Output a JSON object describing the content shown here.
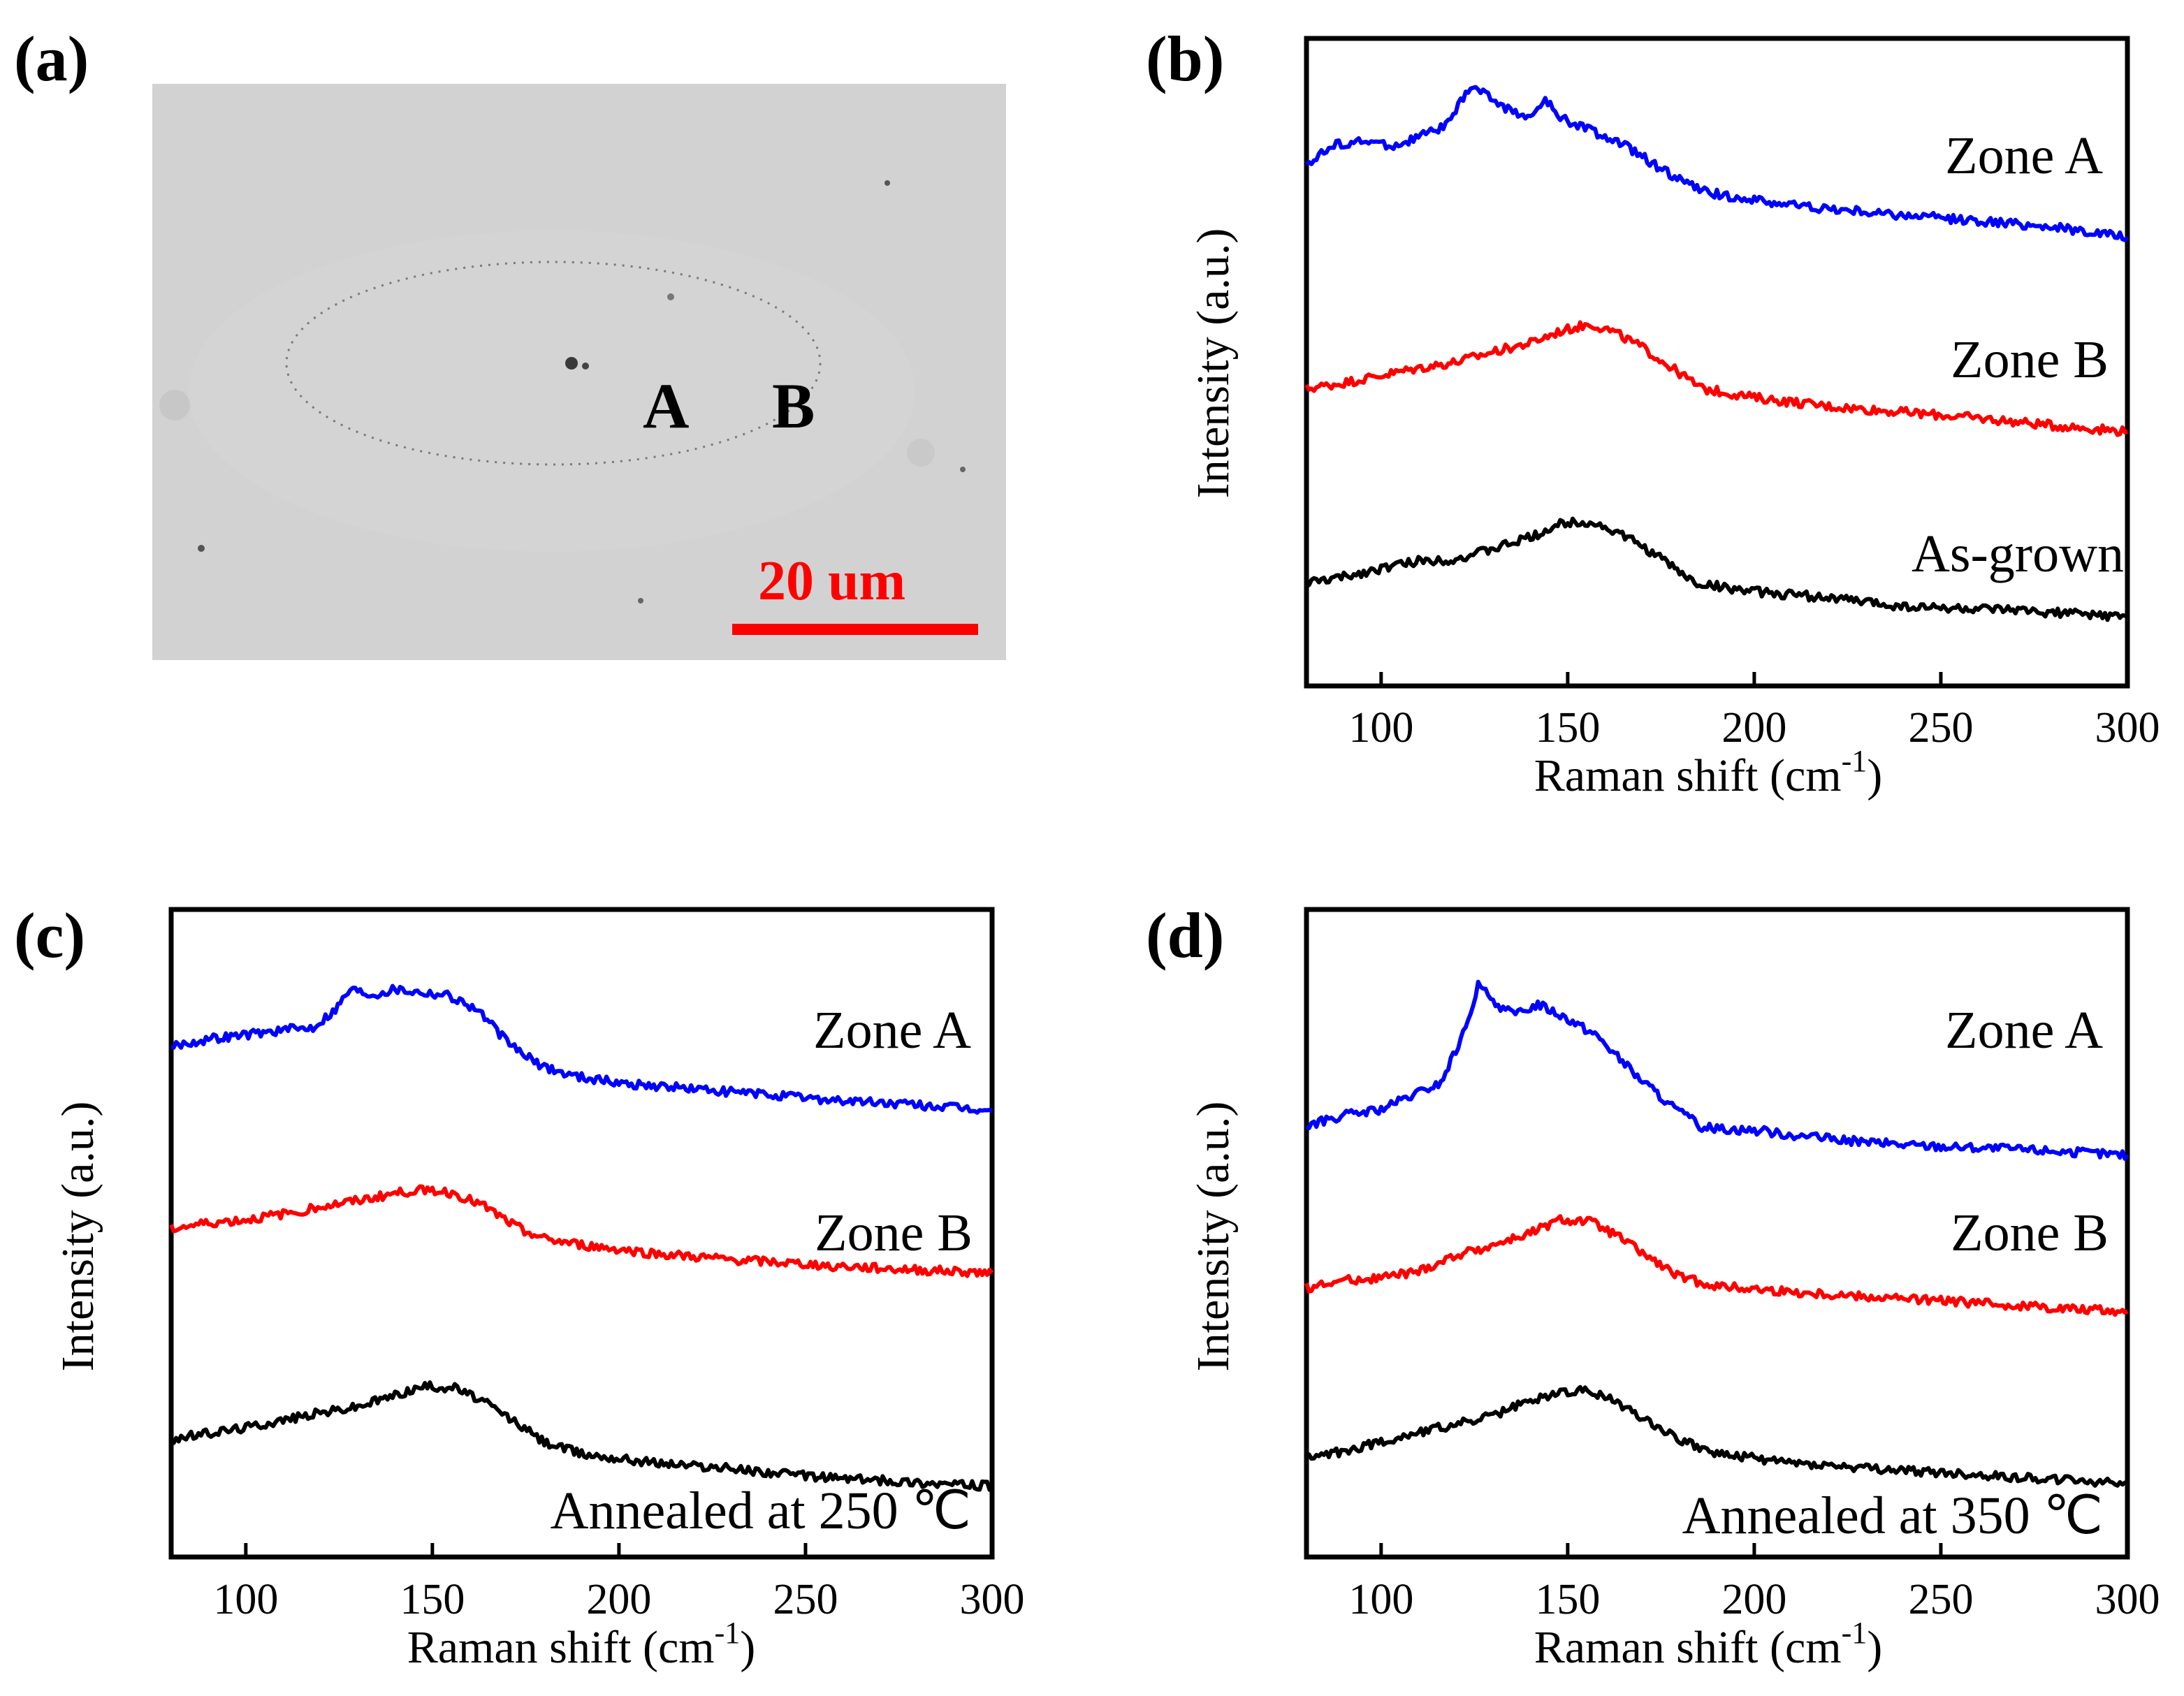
{
  "figure": {
    "panel_letters": {
      "a": "(a)",
      "b": "(b)",
      "c": "(c)",
      "d": "(d)"
    },
    "micrograph": {
      "label_a": "A",
      "label_b": "B",
      "scale_bar_text": "20 um",
      "scale_bar_color": "#ff0000",
      "background_color": "#d2d2d2"
    }
  },
  "chart_data": [
    {
      "id": "b",
      "type": "line",
      "xlabel": "Raman shift (cm",
      "xlabel_sup": "-1",
      "xlabel_end": ")",
      "ylabel": "Intensity (a.u.)",
      "xlim": [
        80,
        300
      ],
      "ylim": [
        0,
        4.4
      ],
      "xticks": [
        100,
        150,
        200,
        250,
        300
      ],
      "tick_labels": [
        "100",
        "150",
        "200",
        "250",
        "300"
      ],
      "grid": false,
      "series": [
        {
          "name": "Zone A",
          "color": "#0000ff",
          "points": [
            [
              80,
              3.55
            ],
            [
              88,
              3.68
            ],
            [
              96,
              3.7
            ],
            [
              104,
              3.67
            ],
            [
              112,
              3.75
            ],
            [
              118,
              3.82
            ],
            [
              124,
              4.08
            ],
            [
              128,
              4.02
            ],
            [
              134,
              3.92
            ],
            [
              140,
              3.86
            ],
            [
              144,
              3.98
            ],
            [
              148,
              3.86
            ],
            [
              156,
              3.78
            ],
            [
              166,
              3.66
            ],
            [
              176,
              3.5
            ],
            [
              186,
              3.36
            ],
            [
              200,
              3.3
            ],
            [
              220,
              3.24
            ],
            [
              240,
              3.2
            ],
            [
              260,
              3.16
            ],
            [
              280,
              3.12
            ],
            [
              300,
              3.05
            ]
          ]
        },
        {
          "name": "Zone B",
          "color": "#ff0000",
          "points": [
            [
              80,
              2.02
            ],
            [
              90,
              2.06
            ],
            [
              100,
              2.11
            ],
            [
              110,
              2.16
            ],
            [
              120,
              2.2
            ],
            [
              130,
              2.27
            ],
            [
              140,
              2.33
            ],
            [
              148,
              2.41
            ],
            [
              156,
              2.46
            ],
            [
              162,
              2.41
            ],
            [
              170,
              2.3
            ],
            [
              178,
              2.16
            ],
            [
              186,
              2.02
            ],
            [
              200,
              1.96
            ],
            [
              220,
              1.9
            ],
            [
              240,
              1.86
            ],
            [
              260,
              1.82
            ],
            [
              280,
              1.77
            ],
            [
              300,
              1.73
            ]
          ]
        },
        {
          "name": "As-grown",
          "color": "#000000",
          "points": [
            [
              80,
              0.7
            ],
            [
              90,
              0.74
            ],
            [
              100,
              0.8
            ],
            [
              110,
              0.85
            ],
            [
              120,
              0.86
            ],
            [
              130,
              0.93
            ],
            [
              140,
              1.01
            ],
            [
              148,
              1.1
            ],
            [
              154,
              1.12
            ],
            [
              160,
              1.08
            ],
            [
              168,
              0.98
            ],
            [
              176,
              0.85
            ],
            [
              184,
              0.7
            ],
            [
              200,
              0.64
            ],
            [
              220,
              0.6
            ],
            [
              240,
              0.54
            ],
            [
              260,
              0.52
            ],
            [
              280,
              0.5
            ],
            [
              300,
              0.47
            ]
          ]
        }
      ]
    },
    {
      "id": "c",
      "type": "line",
      "xlabel": "Raman shift (cm",
      "xlabel_sup": "-1",
      "xlabel_end": ")",
      "ylabel": "Intensity (a.u.)",
      "xlim": [
        80,
        300
      ],
      "ylim": [
        0,
        4.4
      ],
      "xticks": [
        100,
        150,
        200,
        250,
        300
      ],
      "tick_labels": [
        "100",
        "150",
        "200",
        "250",
        "300"
      ],
      "grid": false,
      "annotation": "Annealed at 250  ℃",
      "series": [
        {
          "name": "Zone A",
          "color": "#0000ff",
          "points": [
            [
              80,
              3.47
            ],
            [
              90,
              3.52
            ],
            [
              100,
              3.55
            ],
            [
              110,
              3.58
            ],
            [
              118,
              3.6
            ],
            [
              124,
              3.72
            ],
            [
              128,
              3.86
            ],
            [
              134,
              3.82
            ],
            [
              140,
              3.86
            ],
            [
              146,
              3.84
            ],
            [
              154,
              3.82
            ],
            [
              162,
              3.72
            ],
            [
              170,
              3.5
            ],
            [
              178,
              3.35
            ],
            [
              186,
              3.28
            ],
            [
              200,
              3.22
            ],
            [
              220,
              3.18
            ],
            [
              240,
              3.14
            ],
            [
              260,
              3.1
            ],
            [
              280,
              3.07
            ],
            [
              300,
              3.03
            ]
          ]
        },
        {
          "name": "Zone B",
          "color": "#ff0000",
          "points": [
            [
              80,
              2.23
            ],
            [
              90,
              2.27
            ],
            [
              100,
              2.29
            ],
            [
              110,
              2.33
            ],
            [
              120,
              2.38
            ],
            [
              130,
              2.42
            ],
            [
              140,
              2.47
            ],
            [
              148,
              2.5
            ],
            [
              156,
              2.47
            ],
            [
              164,
              2.38
            ],
            [
              172,
              2.25
            ],
            [
              180,
              2.16
            ],
            [
              190,
              2.12
            ],
            [
              210,
              2.06
            ],
            [
              230,
              2.02
            ],
            [
              250,
              1.99
            ],
            [
              270,
              1.96
            ],
            [
              300,
              1.93
            ]
          ]
        },
        {
          "name": "Annealed at 250",
          "color": "#000000",
          "points": [
            [
              80,
              0.8
            ],
            [
              90,
              0.84
            ],
            [
              100,
              0.88
            ],
            [
              110,
              0.93
            ],
            [
              120,
              0.98
            ],
            [
              130,
              1.02
            ],
            [
              140,
              1.1
            ],
            [
              148,
              1.16
            ],
            [
              156,
              1.15
            ],
            [
              164,
              1.05
            ],
            [
              172,
              0.92
            ],
            [
              180,
              0.78
            ],
            [
              190,
              0.7
            ],
            [
              210,
              0.64
            ],
            [
              230,
              0.6
            ],
            [
              250,
              0.55
            ],
            [
              270,
              0.52
            ],
            [
              300,
              0.48
            ]
          ]
        }
      ]
    },
    {
      "id": "d",
      "type": "line",
      "xlabel": "Raman shift (cm",
      "xlabel_sup": "-1",
      "xlabel_end": ")",
      "ylabel": "Intensity (a.u.)",
      "xlim": [
        80,
        300
      ],
      "ylim": [
        0,
        4.4
      ],
      "xticks": [
        100,
        150,
        200,
        250,
        300
      ],
      "tick_labels": [
        "100",
        "150",
        "200",
        "250",
        "300"
      ],
      "grid": false,
      "annotation": "Annealed at 350 ℃",
      "series": [
        {
          "name": "Zone A",
          "color": "#0000ff",
          "points": [
            [
              80,
              2.93
            ],
            [
              90,
              3.0
            ],
            [
              100,
              3.04
            ],
            [
              108,
              3.13
            ],
            [
              116,
              3.22
            ],
            [
              122,
              3.55
            ],
            [
              126,
              3.88
            ],
            [
              132,
              3.74
            ],
            [
              136,
              3.68
            ],
            [
              142,
              3.76
            ],
            [
              150,
              3.66
            ],
            [
              158,
              3.54
            ],
            [
              168,
              3.28
            ],
            [
              178,
              3.06
            ],
            [
              186,
              2.92
            ],
            [
              200,
              2.9
            ],
            [
              220,
              2.84
            ],
            [
              240,
              2.8
            ],
            [
              260,
              2.78
            ],
            [
              280,
              2.76
            ],
            [
              300,
              2.73
            ]
          ]
        },
        {
          "name": "Zone B",
          "color": "#ff0000",
          "points": [
            [
              80,
              1.83
            ],
            [
              90,
              1.88
            ],
            [
              100,
              1.9
            ],
            [
              110,
              1.94
            ],
            [
              120,
              2.05
            ],
            [
              130,
              2.12
            ],
            [
              140,
              2.2
            ],
            [
              148,
              2.29
            ],
            [
              156,
              2.28
            ],
            [
              164,
              2.17
            ],
            [
              172,
              2.03
            ],
            [
              180,
              1.9
            ],
            [
              190,
              1.84
            ],
            [
              210,
              1.8
            ],
            [
              230,
              1.77
            ],
            [
              250,
              1.74
            ],
            [
              270,
              1.71
            ],
            [
              300,
              1.67
            ]
          ]
        },
        {
          "name": "Annealed at 350",
          "color": "#000000",
          "points": [
            [
              80,
              0.67
            ],
            [
              90,
              0.72
            ],
            [
              100,
              0.78
            ],
            [
              110,
              0.85
            ],
            [
              120,
              0.9
            ],
            [
              130,
              0.96
            ],
            [
              140,
              1.06
            ],
            [
              148,
              1.12
            ],
            [
              156,
              1.13
            ],
            [
              164,
              1.04
            ],
            [
              172,
              0.92
            ],
            [
              180,
              0.8
            ],
            [
              190,
              0.7
            ],
            [
              210,
              0.64
            ],
            [
              230,
              0.6
            ],
            [
              250,
              0.57
            ],
            [
              270,
              0.54
            ],
            [
              300,
              0.5
            ]
          ]
        }
      ]
    }
  ]
}
